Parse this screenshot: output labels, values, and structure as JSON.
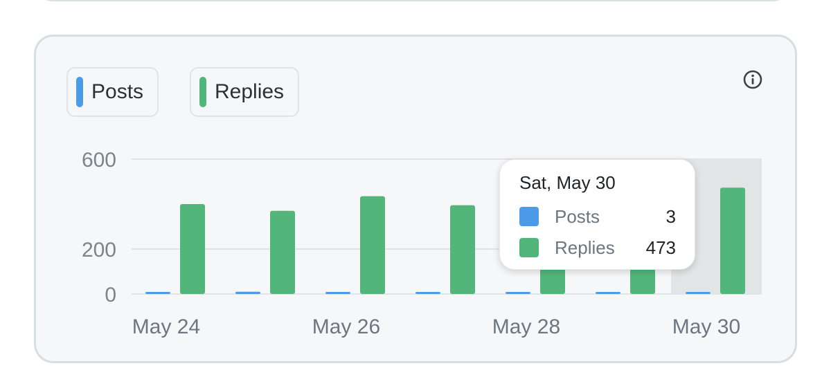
{
  "legend": {
    "posts_label": "Posts",
    "replies_label": "Replies"
  },
  "info_icon": "info-circle-icon",
  "tooltip": {
    "title": "Sat, May 30",
    "rows": [
      {
        "label": "Posts",
        "value": "3",
        "color": "#4c9be8"
      },
      {
        "label": "Replies",
        "value": "473",
        "color": "#52b67b"
      }
    ]
  },
  "chart_data": {
    "type": "bar",
    "categories": [
      "May 24",
      "May 25",
      "May 26",
      "May 27",
      "May 28",
      "May 29",
      "May 30"
    ],
    "x_tick_labels": [
      "May 24",
      "May 26",
      "May 28",
      "May 30"
    ],
    "y_ticks": [
      0,
      200,
      600
    ],
    "ylim": [
      0,
      600
    ],
    "series": [
      {
        "name": "Posts",
        "color": "#4c9be8",
        "values": [
          5,
          10,
          8,
          3,
          8,
          6,
          3
        ]
      },
      {
        "name": "Replies",
        "color": "#52b67b",
        "values": [
          400,
          370,
          435,
          395,
          440,
          400,
          473
        ]
      }
    ],
    "highlighted_category": "May 30",
    "grid": true,
    "legend_position": "top-left"
  }
}
